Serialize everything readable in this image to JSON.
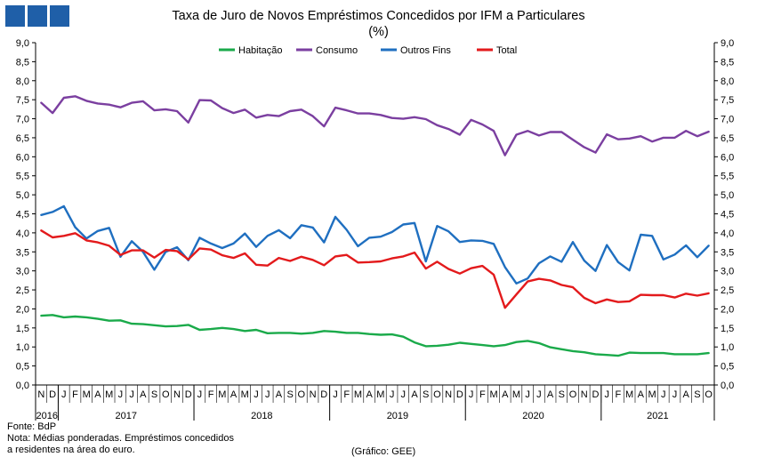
{
  "header": {
    "logo_colors": [
      "#1f5fa8",
      "#1f5fa8",
      "#1f5fa8"
    ],
    "title_line1": "Taxa de Juro de Novos Empréstimos Concedidos por IFM a Particulares",
    "title_line2": "(%)"
  },
  "footer": {
    "source": "Fonte: BdP",
    "note_line1": "Nota: Médias ponderadas. Empréstimos concedidos",
    "note_line2": "a residentes na área do euro.",
    "credit": "(Gráfico: GEE)"
  },
  "chart_data": {
    "type": "line",
    "title": "Taxa de Juro de Novos Empréstimos Concedidos por IFM a Particulares (%)",
    "xlabel": "",
    "ylabel": "%",
    "ylim": [
      0,
      9
    ],
    "ytick_step": 0.5,
    "ytick_labels": [
      "0,0",
      "0,5",
      "1,0",
      "1,5",
      "2,0",
      "2,5",
      "3,0",
      "3,5",
      "4,0",
      "4,5",
      "5,0",
      "5,5",
      "6,0",
      "6,5",
      "7,0",
      "7,5",
      "8,0",
      "8,5",
      "9,0"
    ],
    "grid": false,
    "legend_position": "top",
    "month_labels": [
      "N",
      "D",
      "J",
      "F",
      "M",
      "A",
      "M",
      "J",
      "J",
      "A",
      "S",
      "O",
      "N",
      "D",
      "J",
      "F",
      "M",
      "A",
      "M",
      "J",
      "J",
      "A",
      "S",
      "O",
      "N",
      "D",
      "J",
      "F",
      "M",
      "A",
      "M",
      "J",
      "J",
      "A",
      "S",
      "O",
      "N",
      "D",
      "J",
      "F",
      "M",
      "A",
      "M",
      "J",
      "J",
      "A",
      "S",
      "O",
      "N",
      "D",
      "J",
      "F",
      "M",
      "A",
      "M",
      "J",
      "J",
      "A",
      "S",
      "O"
    ],
    "year_groups": [
      {
        "label": "2016",
        "start": 0,
        "count": 2
      },
      {
        "label": "2017",
        "start": 2,
        "count": 12
      },
      {
        "label": "2018",
        "start": 14,
        "count": 12
      },
      {
        "label": "2019",
        "start": 26,
        "count": 12
      },
      {
        "label": "2020",
        "start": 38,
        "count": 12
      },
      {
        "label": "2021",
        "start": 50,
        "count": 10
      }
    ],
    "series": [
      {
        "name": "Habitação",
        "color": "#1aaa4a",
        "values": [
          1.82,
          1.84,
          1.78,
          1.8,
          1.78,
          1.74,
          1.69,
          1.7,
          1.61,
          1.6,
          1.57,
          1.54,
          1.55,
          1.58,
          1.45,
          1.47,
          1.5,
          1.47,
          1.42,
          1.45,
          1.36,
          1.37,
          1.37,
          1.35,
          1.37,
          1.42,
          1.4,
          1.37,
          1.37,
          1.34,
          1.32,
          1.33,
          1.27,
          1.12,
          1.02,
          1.03,
          1.06,
          1.11,
          1.08,
          1.05,
          1.02,
          1.05,
          1.13,
          1.16,
          1.1,
          0.99,
          0.94,
          0.89,
          0.86,
          0.81,
          0.79,
          0.77,
          0.85,
          0.84,
          0.84,
          0.84,
          0.81,
          0.81,
          0.81,
          0.84
        ]
      },
      {
        "name": "Consumo",
        "color": "#7b3fa0",
        "values": [
          7.42,
          7.15,
          7.55,
          7.59,
          7.47,
          7.4,
          7.37,
          7.3,
          7.42,
          7.46,
          7.22,
          7.25,
          7.2,
          6.9,
          7.49,
          7.48,
          7.28,
          7.15,
          7.24,
          7.03,
          7.1,
          7.07,
          7.2,
          7.24,
          7.07,
          6.8,
          7.29,
          7.22,
          7.14,
          7.14,
          7.1,
          7.02,
          7.0,
          7.04,
          6.99,
          6.83,
          6.73,
          6.58,
          6.97,
          6.85,
          6.68,
          6.04,
          6.58,
          6.68,
          6.56,
          6.65,
          6.65,
          6.45,
          6.25,
          6.11,
          6.59,
          6.46,
          6.48,
          6.54,
          6.4,
          6.5,
          6.5,
          6.68,
          6.54,
          6.66
        ]
      },
      {
        "name": "Outros Fins",
        "color": "#1f6fc0",
        "values": [
          4.47,
          4.55,
          4.7,
          4.15,
          3.85,
          4.05,
          4.13,
          3.37,
          3.78,
          3.5,
          3.03,
          3.5,
          3.62,
          3.28,
          3.87,
          3.72,
          3.6,
          3.72,
          3.98,
          3.63,
          3.92,
          4.07,
          3.86,
          4.2,
          4.14,
          3.75,
          4.42,
          4.08,
          3.65,
          3.87,
          3.9,
          4.02,
          4.22,
          4.26,
          3.25,
          4.18,
          4.04,
          3.76,
          3.8,
          3.79,
          3.71,
          3.1,
          2.67,
          2.8,
          3.2,
          3.38,
          3.24,
          3.76,
          3.27,
          3.0,
          3.68,
          3.23,
          3.01,
          3.95,
          3.92,
          3.3,
          3.43,
          3.67,
          3.36,
          3.66
        ]
      },
      {
        "name": "Total",
        "color": "#e31a1c",
        "values": [
          4.06,
          3.88,
          3.92,
          3.99,
          3.8,
          3.75,
          3.66,
          3.42,
          3.54,
          3.54,
          3.35,
          3.55,
          3.52,
          3.3,
          3.59,
          3.56,
          3.41,
          3.34,
          3.46,
          3.16,
          3.14,
          3.34,
          3.26,
          3.37,
          3.29,
          3.15,
          3.38,
          3.42,
          3.22,
          3.23,
          3.25,
          3.33,
          3.38,
          3.48,
          3.06,
          3.24,
          3.05,
          2.93,
          3.07,
          3.13,
          2.9,
          2.03,
          2.38,
          2.72,
          2.79,
          2.75,
          2.63,
          2.57,
          2.29,
          2.15,
          2.25,
          2.18,
          2.2,
          2.37,
          2.36,
          2.36,
          2.3,
          2.4,
          2.35,
          2.41
        ]
      }
    ]
  }
}
